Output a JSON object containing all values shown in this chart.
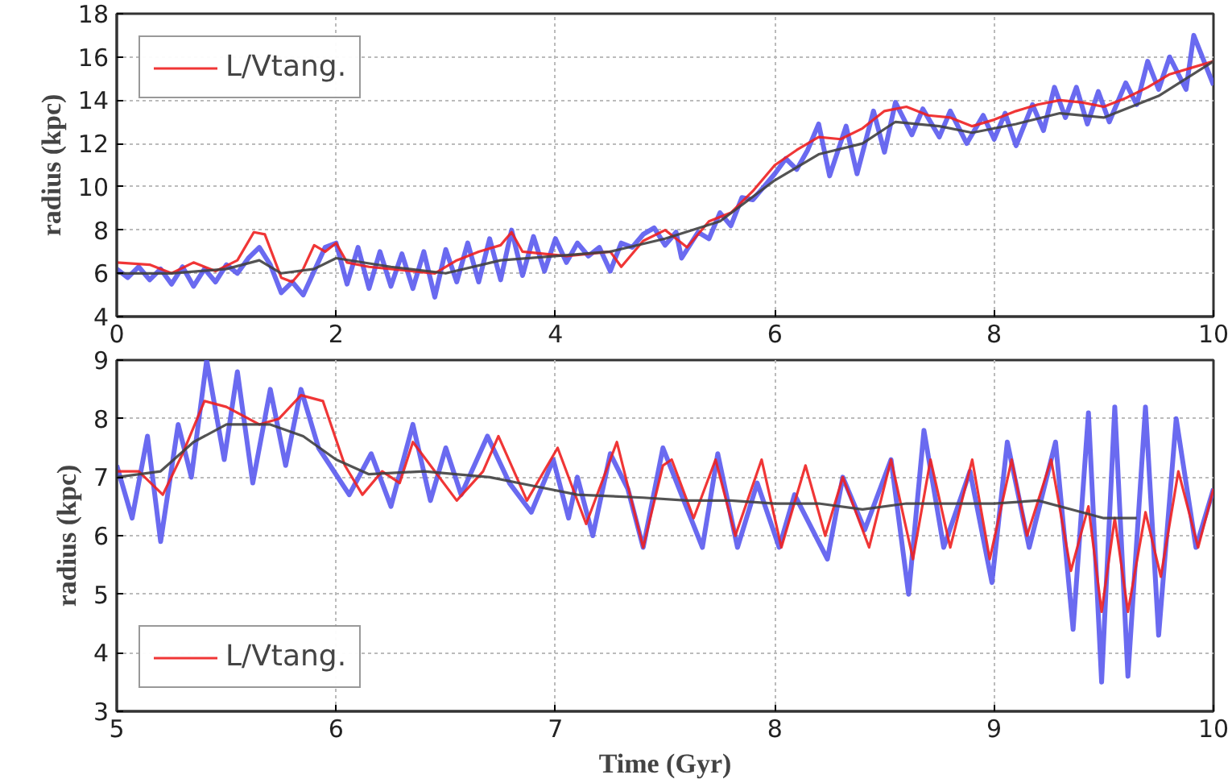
{
  "chart_data": [
    {
      "type": "line",
      "ylabel": "radius (kpc)",
      "xlim": [
        0,
        10
      ],
      "ylim": [
        4,
        18
      ],
      "xticks": [
        0,
        2,
        4,
        6,
        8,
        10
      ],
      "yticks": [
        4,
        6,
        8,
        10,
        12,
        14,
        16,
        18
      ],
      "grid": true,
      "legend": "top left",
      "line_style": "solid",
      "marker": "none",
      "series": [
        {
          "color": "#5a5aee",
          "x": [
            0,
            0.1,
            0.2,
            0.3,
            0.4,
            0.5,
            0.6,
            0.7,
            0.8,
            0.9,
            1.0,
            1.1,
            1.2,
            1.3,
            1.4,
            1.5,
            1.6,
            1.7,
            1.8,
            1.9,
            2.0,
            2.1,
            2.2,
            2.3,
            2.4,
            2.5,
            2.6,
            2.7,
            2.8,
            2.9,
            3.0,
            3.1,
            3.2,
            3.3,
            3.4,
            3.5,
            3.6,
            3.7,
            3.8,
            3.9,
            4.0,
            4.1,
            4.2,
            4.3,
            4.4,
            4.5,
            4.6,
            4.7,
            4.8,
            4.9,
            5.0,
            5.1,
            5.15,
            5.3,
            5.4,
            5.5,
            5.6,
            5.7,
            5.8,
            5.9,
            6.0,
            6.1,
            6.2,
            6.3,
            6.4,
            6.5,
            6.65,
            6.75,
            6.9,
            7.0,
            7.1,
            7.25,
            7.35,
            7.5,
            7.6,
            7.75,
            7.9,
            8.0,
            8.1,
            8.2,
            8.35,
            8.45,
            8.55,
            8.65,
            8.75,
            8.85,
            8.95,
            9.05,
            9.2,
            9.3,
            9.4,
            9.5,
            9.6,
            9.75,
            9.82,
            10.0
          ],
          "values": [
            6.2,
            5.8,
            6.3,
            5.7,
            6.2,
            5.5,
            6.3,
            5.4,
            6.2,
            5.6,
            6.4,
            6.0,
            6.7,
            7.2,
            6.4,
            5.1,
            5.6,
            5.0,
            6.1,
            7.2,
            7.4,
            5.5,
            7.2,
            5.3,
            7.0,
            5.4,
            6.9,
            5.3,
            7.0,
            4.9,
            7.1,
            5.6,
            7.4,
            5.6,
            7.6,
            5.7,
            8.0,
            5.9,
            7.7,
            6.1,
            7.6,
            6.5,
            7.4,
            6.8,
            7.2,
            6.1,
            7.4,
            7.2,
            7.8,
            8.1,
            7.3,
            7.9,
            6.7,
            7.9,
            7.6,
            8.8,
            8.2,
            9.5,
            9.4,
            10.0,
            10.6,
            11.3,
            10.8,
            11.7,
            12.9,
            10.5,
            12.8,
            10.6,
            13.5,
            11.6,
            13.9,
            12.4,
            13.6,
            12.3,
            13.5,
            12.0,
            13.3,
            12.2,
            13.4,
            11.9,
            13.8,
            12.6,
            14.6,
            13.2,
            14.6,
            12.9,
            14.4,
            13.0,
            14.8,
            13.8,
            15.8,
            14.5,
            16.0,
            14.5,
            17.0,
            14.7
          ]
        },
        {
          "name": "L/Vtang.",
          "color": "#ee2020",
          "x": [
            0,
            0.3,
            0.5,
            0.7,
            0.9,
            1.1,
            1.25,
            1.35,
            1.5,
            1.6,
            1.7,
            1.8,
            1.9,
            2.0,
            2.1,
            2.3,
            2.5,
            2.7,
            2.9,
            3.1,
            3.3,
            3.5,
            3.6,
            3.7,
            3.9,
            4.1,
            4.3,
            4.5,
            4.6,
            4.8,
            5.0,
            5.2,
            5.4,
            5.6,
            5.8,
            6.0,
            6.2,
            6.4,
            6.6,
            6.8,
            7.0,
            7.2,
            7.4,
            7.6,
            7.8,
            8.0,
            8.2,
            8.4,
            8.6,
            8.8,
            9.0,
            9.2,
            9.4,
            9.6,
            9.8,
            10.0
          ],
          "values": [
            6.5,
            6.4,
            6.0,
            6.5,
            6.1,
            6.6,
            7.9,
            7.8,
            5.8,
            5.6,
            6.2,
            7.3,
            7.0,
            7.4,
            6.5,
            6.3,
            6.2,
            6.1,
            6.0,
            6.6,
            7.0,
            7.3,
            7.9,
            7.0,
            6.9,
            6.8,
            6.9,
            7.0,
            6.3,
            7.5,
            8.0,
            7.2,
            8.4,
            8.8,
            9.8,
            11.0,
            11.7,
            12.3,
            12.2,
            12.7,
            13.5,
            13.7,
            13.3,
            13.2,
            12.8,
            13.1,
            13.5,
            13.8,
            14.0,
            13.9,
            13.7,
            14.1,
            14.6,
            15.2,
            15.5,
            15.8
          ]
        },
        {
          "color": "#404040",
          "x": [
            0,
            0.5,
            1.0,
            1.3,
            1.5,
            1.8,
            2.0,
            2.5,
            3.0,
            3.5,
            4.0,
            4.5,
            5.0,
            5.5,
            6.0,
            6.4,
            6.8,
            7.1,
            7.5,
            7.8,
            8.2,
            8.6,
            9.0,
            9.5,
            10.0
          ],
          "values": [
            6.0,
            6.0,
            6.2,
            6.6,
            6.0,
            6.2,
            6.7,
            6.3,
            6.0,
            6.6,
            6.8,
            7.0,
            7.6,
            8.4,
            10.3,
            11.5,
            12.0,
            13.0,
            12.8,
            12.5,
            12.9,
            13.4,
            13.2,
            14.2,
            15.8
          ]
        }
      ]
    },
    {
      "type": "line",
      "xlabel": "Time (Gyr)",
      "ylabel": "radius (kpc)",
      "xlim": [
        5,
        10
      ],
      "ylim": [
        3,
        9
      ],
      "xticks": [
        5,
        6,
        7,
        8,
        9,
        10
      ],
      "yticks": [
        3,
        4,
        5,
        6,
        7,
        8,
        9
      ],
      "grid": true,
      "legend": "bottom left",
      "line_style": "solid",
      "marker": "none",
      "series": [
        {
          "color": "#5a5aee",
          "x": [
            5.0,
            5.07,
            5.14,
            5.2,
            5.28,
            5.34,
            5.41,
            5.49,
            5.55,
            5.62,
            5.7,
            5.77,
            5.84,
            5.92,
            6.06,
            6.16,
            6.25,
            6.35,
            6.43,
            6.5,
            6.57,
            6.69,
            6.79,
            6.89,
            6.99,
            7.06,
            7.1,
            7.17,
            7.25,
            7.33,
            7.4,
            7.49,
            7.67,
            7.74,
            7.83,
            7.92,
            8.02,
            8.09,
            8.24,
            8.31,
            8.41,
            8.53,
            8.61,
            8.68,
            8.77,
            8.89,
            8.99,
            9.06,
            9.16,
            9.28,
            9.36,
            9.43,
            9.49,
            9.55,
            9.61,
            9.69,
            9.75,
            9.83,
            9.92,
            10.0
          ],
          "values": [
            7.2,
            6.3,
            7.7,
            5.9,
            7.9,
            7.0,
            9.0,
            7.3,
            8.8,
            6.9,
            8.5,
            7.2,
            8.5,
            7.5,
            6.7,
            7.4,
            6.5,
            7.9,
            6.6,
            7.5,
            6.7,
            7.7,
            6.9,
            6.4,
            7.3,
            6.3,
            7.0,
            6.0,
            7.4,
            6.8,
            5.8,
            7.5,
            5.8,
            7.4,
            5.8,
            6.9,
            5.8,
            6.7,
            5.6,
            7.0,
            6.1,
            7.3,
            5.0,
            7.8,
            5.8,
            7.1,
            5.2,
            7.6,
            5.8,
            7.6,
            4.4,
            8.1,
            3.5,
            8.2,
            3.6,
            8.2,
            4.3,
            8.0,
            5.8,
            6.8
          ]
        },
        {
          "name": "L/Vtang.",
          "color": "#ee2020",
          "x": [
            5.0,
            5.1,
            5.21,
            5.3,
            5.4,
            5.5,
            5.65,
            5.74,
            5.84,
            5.94,
            6.04,
            6.12,
            6.21,
            6.29,
            6.35,
            6.45,
            6.55,
            6.67,
            6.74,
            6.87,
            7.01,
            7.14,
            7.28,
            7.4,
            7.49,
            7.53,
            7.63,
            7.73,
            7.82,
            7.94,
            8.03,
            8.14,
            8.23,
            8.31,
            8.43,
            8.53,
            8.63,
            8.71,
            8.8,
            8.9,
            8.98,
            9.08,
            9.15,
            9.26,
            9.35,
            9.43,
            9.49,
            9.55,
            9.61,
            9.69,
            9.76,
            9.84,
            9.93,
            10.0
          ],
          "values": [
            7.1,
            7.1,
            6.7,
            7.4,
            8.3,
            8.2,
            7.9,
            8.0,
            8.4,
            8.3,
            7.2,
            6.7,
            7.1,
            6.9,
            7.6,
            7.1,
            6.6,
            7.1,
            7.7,
            6.6,
            7.5,
            6.2,
            7.6,
            5.8,
            7.2,
            7.3,
            6.3,
            7.3,
            6.0,
            7.3,
            5.8,
            7.2,
            6.0,
            7.0,
            5.8,
            7.3,
            5.6,
            7.3,
            5.8,
            7.3,
            5.6,
            7.3,
            6.0,
            7.3,
            5.4,
            6.5,
            4.7,
            6.3,
            4.7,
            6.4,
            5.3,
            7.1,
            5.8,
            6.8
          ]
        },
        {
          "color": "#404040",
          "x": [
            5.0,
            5.2,
            5.35,
            5.5,
            5.7,
            5.85,
            6.0,
            6.15,
            6.4,
            6.7,
            6.9,
            7.1,
            7.4,
            7.6,
            7.8,
            8.0,
            8.2,
            8.4,
            8.6,
            8.8,
            9.0,
            9.2,
            9.35,
            9.5,
            9.65
          ],
          "values": [
            7.0,
            7.1,
            7.6,
            7.9,
            7.9,
            7.7,
            7.3,
            7.05,
            7.1,
            7.0,
            6.85,
            6.7,
            6.65,
            6.6,
            6.6,
            6.55,
            6.55,
            6.45,
            6.55,
            6.55,
            6.55,
            6.6,
            6.45,
            6.3,
            6.3
          ]
        }
      ]
    }
  ]
}
